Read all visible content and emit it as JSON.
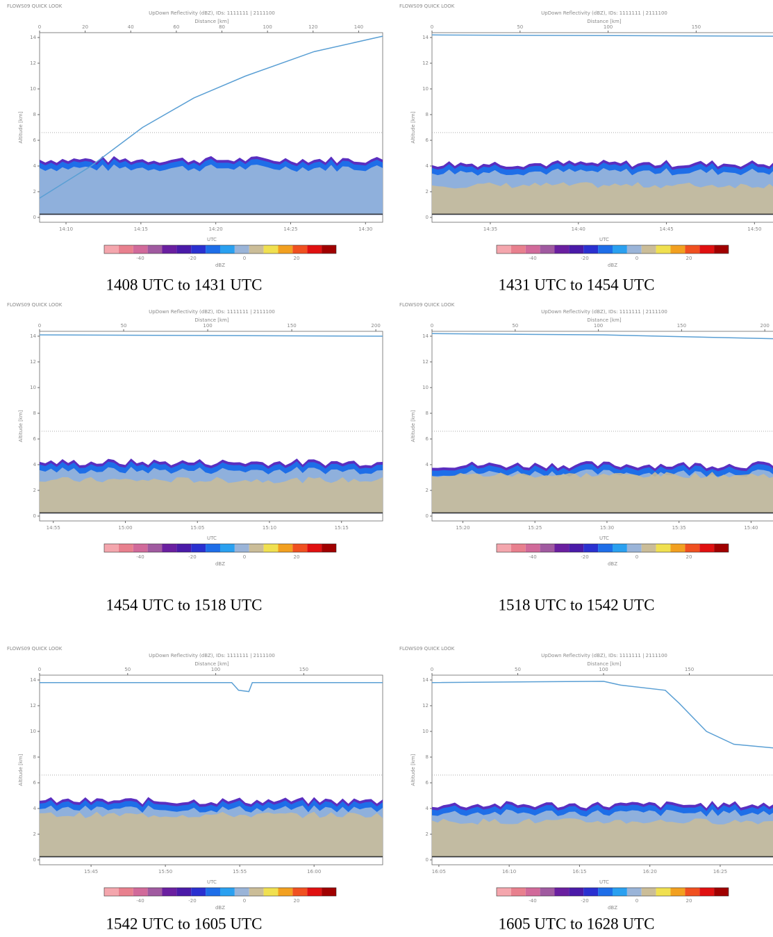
{
  "panels": [
    {
      "header": "FLOWS09 QUICK LOOK",
      "title": "UpDown Reflectivity (dBZ), IDs: 1111111 | 2111100",
      "distance_label": "Distance [km]",
      "altitude_label": "Altitude [km]",
      "time_label": "UTC",
      "colorbar_label": "dBZ",
      "distance_ticks": [
        0,
        20,
        40,
        60,
        80,
        100,
        120,
        140
      ],
      "time_ticks": [
        "14:10",
        "14:15",
        "14:20",
        "14:25",
        "14:30"
      ],
      "altitude_ticks": [
        0,
        2,
        4,
        6,
        8,
        10,
        12,
        14
      ],
      "colorbar_ticks": [
        -40,
        -20,
        0,
        20
      ],
      "caption": "1408 UTC to 1431 UTC"
    },
    {
      "header": "FLOWS09 QUICK LOOK",
      "title": "UpDown Reflectivity (dBZ), IDs: 1111111 | 2111100",
      "distance_label": "Distance [km]",
      "altitude_label": "Altitude [km]",
      "time_label": "UTC",
      "colorbar_label": "dBZ",
      "distance_ticks": [
        0,
        50,
        100,
        150
      ],
      "time_ticks": [
        "14:35",
        "14:40",
        "14:45",
        "14:50"
      ],
      "altitude_ticks": [
        0,
        2,
        4,
        6,
        8,
        10,
        12,
        14
      ],
      "colorbar_ticks": [
        -40,
        -20,
        0,
        20
      ],
      "caption": "1431 UTC to 1454 UTC"
    },
    {
      "header": "FLOWS09 QUICK LOOK",
      "title": "UpDown Reflectivity (dBZ), IDs: 1111111 | 2111100",
      "distance_label": "Distance [km]",
      "altitude_label": "Altitude [km]",
      "time_label": "UTC",
      "colorbar_label": "dBZ",
      "distance_ticks": [
        0,
        50,
        100,
        150,
        200
      ],
      "time_ticks": [
        "14:55",
        "15:00",
        "15:05",
        "15:10",
        "15:15"
      ],
      "altitude_ticks": [
        0,
        2,
        4,
        6,
        8,
        10,
        12,
        14
      ],
      "colorbar_ticks": [
        -40,
        -20,
        0,
        20
      ],
      "caption": "1454 UTC to 1518 UTC"
    },
    {
      "header": "FLOWS09 QUICK LOOK",
      "title": "UpDown Reflectivity (dBZ), IDs: 1111111 | 2111100",
      "distance_label": "Distance [km]",
      "altitude_label": "Altitude [km]",
      "time_label": "UTC",
      "colorbar_label": "dBZ",
      "distance_ticks": [
        0,
        50,
        100,
        150,
        200
      ],
      "time_ticks": [
        "15:20",
        "15:25",
        "15:30",
        "15:35",
        "15:40"
      ],
      "altitude_ticks": [
        0,
        2,
        4,
        6,
        8,
        10,
        12,
        14
      ],
      "colorbar_ticks": [
        -40,
        -20,
        0,
        20
      ],
      "caption": "1518 UTC to 1542 UTC"
    },
    {
      "header": "FLOWS09 QUICK LOOK",
      "title": "UpDown Reflectivity (dBZ), IDs: 1111111 | 2111100",
      "distance_label": "Distance [km]",
      "altitude_label": "Altitude [km]",
      "time_label": "UTC",
      "colorbar_label": "dBZ",
      "distance_ticks": [
        0,
        50,
        100,
        150
      ],
      "time_ticks": [
        "15:45",
        "15:50",
        "15:55",
        "16:00"
      ],
      "altitude_ticks": [
        0,
        2,
        4,
        6,
        8,
        10,
        12,
        14
      ],
      "colorbar_ticks": [
        -40,
        -20,
        0,
        20
      ],
      "caption": "1542 UTC to 1605 UTC"
    },
    {
      "header": "FLOWS09 QUICK LOOK",
      "title": "UpDown Reflectivity (dBZ), IDs: 1111111 | 2111100",
      "distance_label": "Distance [km]",
      "altitude_label": "Altitude [km]",
      "time_label": "UTC",
      "colorbar_label": "dBZ",
      "distance_ticks": [
        0,
        50,
        100,
        150
      ],
      "time_ticks": [
        "16:05",
        "16:10",
        "16:15",
        "16:20",
        "16:25"
      ],
      "altitude_ticks": [
        0,
        2,
        4,
        6,
        8,
        10,
        12,
        14
      ],
      "colorbar_ticks": [
        -40,
        -20,
        0,
        20
      ],
      "caption": "1605 UTC to 1628 UTC"
    }
  ]
}
